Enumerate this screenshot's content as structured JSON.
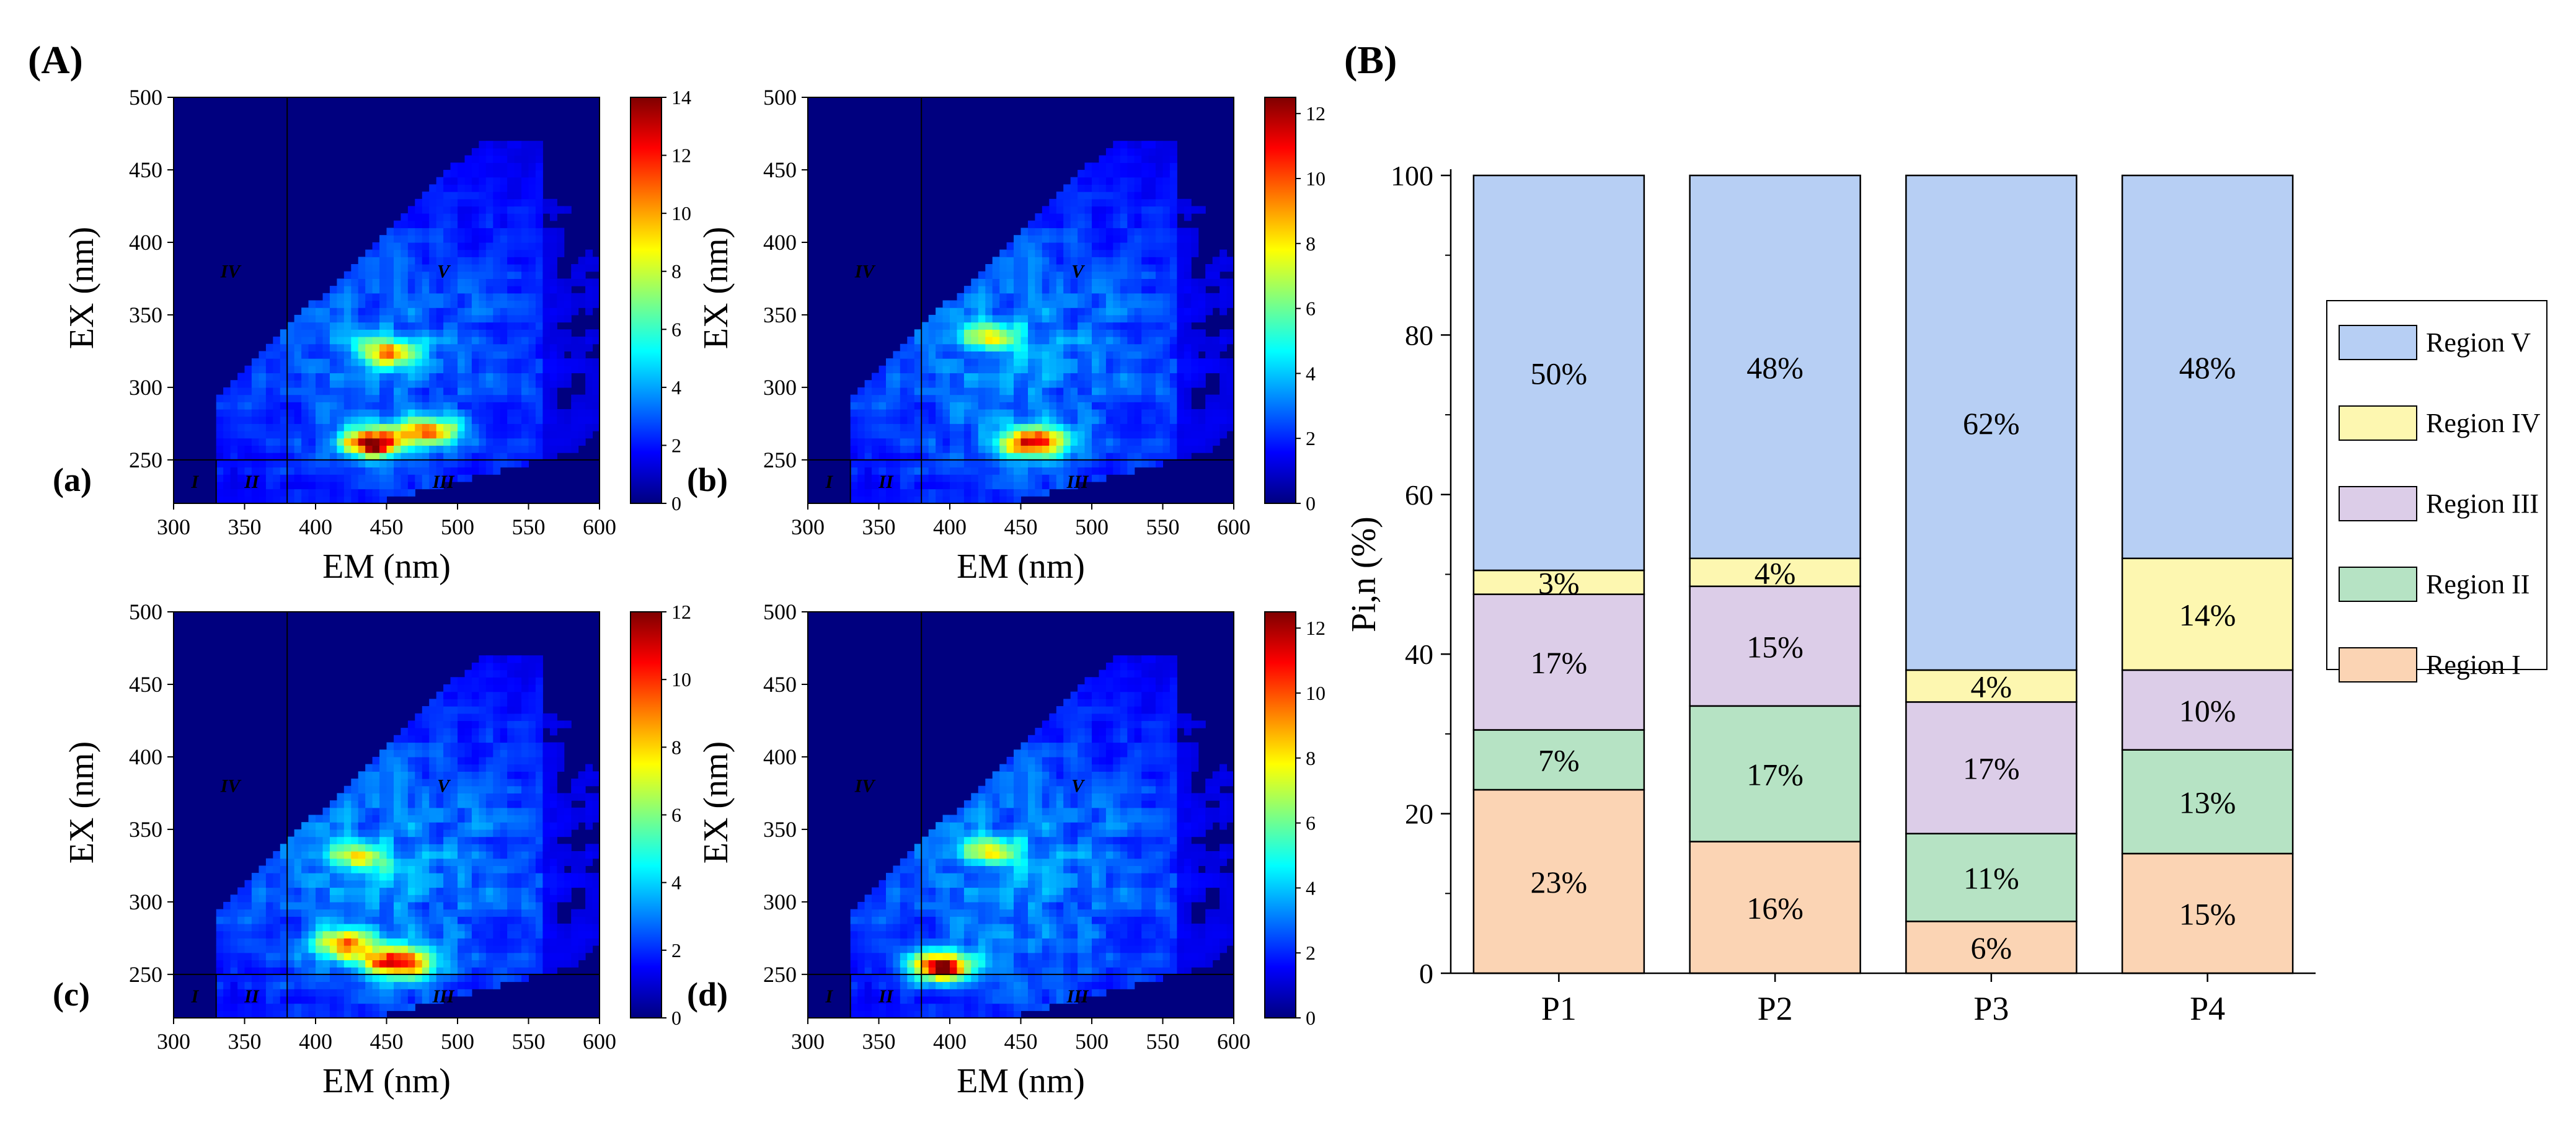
{
  "panels": {
    "A": {
      "label": "(A)"
    },
    "B": {
      "label": "(B)"
    }
  },
  "colors": {
    "region_I": "#fbd4b4",
    "region_II": "#b6e3c4",
    "region_III": "#dccde8",
    "region_IV": "#fdf7b0",
    "region_V": "#b7cff4",
    "colormap": [
      "#00007f",
      "#0000ff",
      "#0080ff",
      "#00ffff",
      "#80ff80",
      "#ffff00",
      "#ff8000",
      "#ff0000",
      "#7f0000"
    ]
  },
  "chart_data": [
    {
      "type": "heatmap",
      "id": "a",
      "label": "(a)",
      "xlabel": "EM (nm)",
      "ylabel": "EX (nm)",
      "xlim": [
        300,
        600
      ],
      "ylim": [
        220,
        500
      ],
      "xticks": [
        300,
        350,
        400,
        450,
        500,
        550,
        600
      ],
      "yticks": [
        250,
        300,
        350,
        400,
        450,
        500
      ],
      "region_boundaries": {
        "em": [
          330,
          380
        ],
        "ex": [
          250
        ]
      },
      "region_labels": [
        {
          "text": "I",
          "em": 315,
          "ex": 235
        },
        {
          "text": "II",
          "em": 355,
          "ex": 235
        },
        {
          "text": "III",
          "em": 490,
          "ex": 235
        },
        {
          "text": "IV",
          "em": 340,
          "ex": 380
        },
        {
          "text": "V",
          "em": 490,
          "ex": 380
        }
      ],
      "colorbar": {
        "min": 0,
        "max": 14,
        "ticks": [
          0,
          2,
          4,
          6,
          8,
          10,
          12,
          14
        ]
      },
      "peaks": [
        {
          "em": 450,
          "ex": 325,
          "value": 8
        },
        {
          "em": 440,
          "ex": 262,
          "value": 13
        },
        {
          "em": 480,
          "ex": 270,
          "value": 9
        }
      ]
    },
    {
      "type": "heatmap",
      "id": "b",
      "label": "(b)",
      "xlabel": "EM (nm)",
      "ylabel": "EX (nm)",
      "xlim": [
        300,
        600
      ],
      "ylim": [
        220,
        500
      ],
      "xticks": [
        300,
        350,
        400,
        450,
        500,
        550,
        600
      ],
      "yticks": [
        250,
        300,
        350,
        400,
        450,
        500
      ],
      "region_boundaries": {
        "em": [
          330,
          380
        ],
        "ex": [
          250
        ]
      },
      "region_labels": [
        {
          "text": "I",
          "em": 315,
          "ex": 235
        },
        {
          "text": "II",
          "em": 355,
          "ex": 235
        },
        {
          "text": "III",
          "em": 490,
          "ex": 235
        },
        {
          "text": "IV",
          "em": 340,
          "ex": 380
        },
        {
          "text": "V",
          "em": 490,
          "ex": 380
        }
      ],
      "colorbar": {
        "min": 0,
        "max": 12.5,
        "ticks": [
          0,
          2,
          4,
          6,
          8,
          10,
          12
        ]
      },
      "peaks": [
        {
          "em": 460,
          "ex": 262,
          "value": 11
        },
        {
          "em": 430,
          "ex": 335,
          "value": 5
        }
      ]
    },
    {
      "type": "heatmap",
      "id": "c",
      "label": "(c)",
      "xlabel": "EM (nm)",
      "ylabel": "EX (nm)",
      "xlim": [
        300,
        600
      ],
      "ylim": [
        220,
        500
      ],
      "xticks": [
        300,
        350,
        400,
        450,
        500,
        550,
        600
      ],
      "yticks": [
        250,
        300,
        350,
        400,
        450,
        500
      ],
      "region_boundaries": {
        "em": [
          330,
          380
        ],
        "ex": [
          250
        ]
      },
      "region_labels": [
        {
          "text": "I",
          "em": 315,
          "ex": 235
        },
        {
          "text": "II",
          "em": 355,
          "ex": 235
        },
        {
          "text": "III",
          "em": 490,
          "ex": 235
        },
        {
          "text": "IV",
          "em": 340,
          "ex": 380
        },
        {
          "text": "V",
          "em": 490,
          "ex": 380
        }
      ],
      "colorbar": {
        "min": 0,
        "max": 12,
        "ticks": [
          0,
          2,
          4,
          6,
          8,
          10,
          12
        ]
      },
      "peaks": [
        {
          "em": 460,
          "ex": 258,
          "value": 11
        },
        {
          "em": 420,
          "ex": 270,
          "value": 8
        },
        {
          "em": 430,
          "ex": 330,
          "value": 5
        }
      ]
    },
    {
      "type": "heatmap",
      "id": "d",
      "label": "(d)",
      "xlabel": "EM (nm)",
      "ylabel": "EX (nm)",
      "xlim": [
        300,
        600
      ],
      "ylim": [
        220,
        500
      ],
      "xticks": [
        300,
        350,
        400,
        450,
        500,
        550,
        600
      ],
      "yticks": [
        250,
        300,
        350,
        400,
        450,
        500
      ],
      "region_boundaries": {
        "em": [
          330,
          380
        ],
        "ex": [
          250
        ]
      },
      "region_labels": [
        {
          "text": "I",
          "em": 315,
          "ex": 235
        },
        {
          "text": "II",
          "em": 355,
          "ex": 235
        },
        {
          "text": "III",
          "em": 490,
          "ex": 235
        },
        {
          "text": "IV",
          "em": 340,
          "ex": 380
        },
        {
          "text": "V",
          "em": 490,
          "ex": 380
        }
      ],
      "colorbar": {
        "min": 0,
        "max": 12.5,
        "ticks": [
          0,
          2,
          4,
          6,
          8,
          10,
          12
        ]
      },
      "peaks": [
        {
          "em": 395,
          "ex": 256,
          "value": 12
        },
        {
          "em": 430,
          "ex": 335,
          "value": 5
        }
      ]
    },
    {
      "type": "bar",
      "stacked": true,
      "id": "B",
      "categories": [
        "P1",
        "P2",
        "P3",
        "P4"
      ],
      "ylabel": "Pi,n (%)",
      "xlabel": "",
      "ylim": [
        0,
        100
      ],
      "yticks": [
        0,
        20,
        40,
        60,
        80,
        100
      ],
      "legend_position": "right",
      "series": [
        {
          "name": "Region I",
          "values": [
            23,
            16.5,
            6.5,
            15
          ],
          "labels": [
            "23%",
            "16%",
            "6%",
            "15%"
          ]
        },
        {
          "name": "Region II",
          "values": [
            7.5,
            17,
            11,
            13
          ],
          "labels": [
            "7%",
            "17%",
            "11%",
            "13%"
          ]
        },
        {
          "name": "Region III",
          "values": [
            17,
            15,
            16.5,
            10
          ],
          "labels": [
            "17%",
            "15%",
            "17%",
            "10%"
          ]
        },
        {
          "name": "Region IV",
          "values": [
            3,
            3.5,
            4,
            14
          ],
          "labels": [
            "3%",
            "4%",
            "4%",
            "14%"
          ]
        },
        {
          "name": "Region V",
          "values": [
            49.5,
            48,
            62,
            48
          ],
          "labels": [
            "50%",
            "48%",
            "62%",
            "48%"
          ]
        }
      ],
      "legend_order": [
        "Region V",
        "Region IV",
        "Region III",
        "Region II",
        "Region I"
      ]
    }
  ]
}
